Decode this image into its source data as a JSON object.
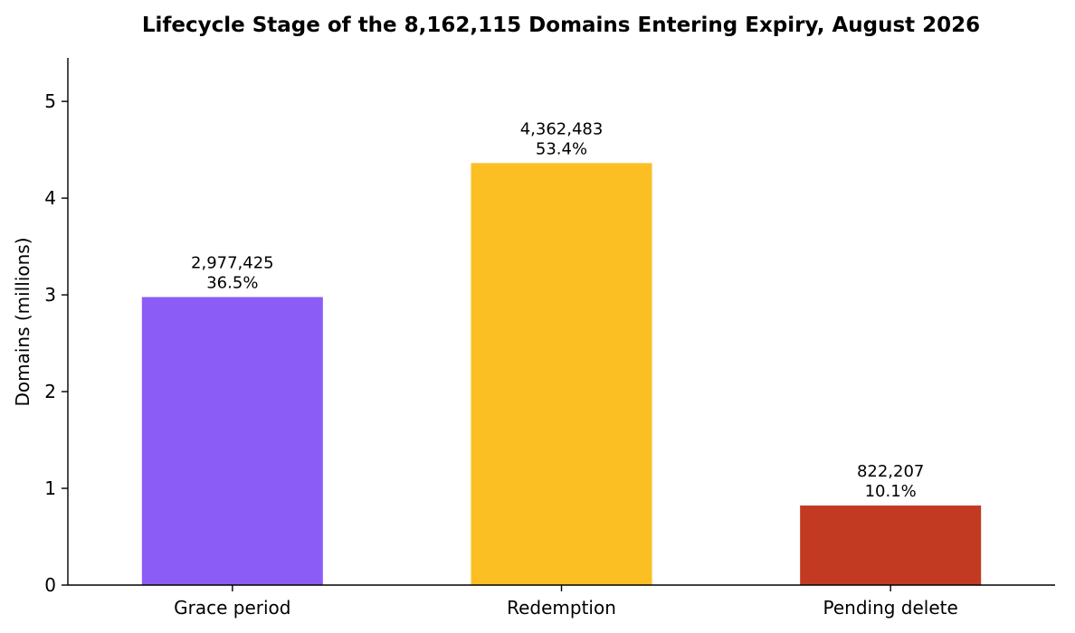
{
  "chart_data": {
    "type": "bar",
    "title": "Lifecycle Stage of the 8,162,115 Domains Entering Expiry, August 2026",
    "xlabel": "",
    "ylabel": "Domains (millions)",
    "ylim": [
      0,
      5.45
    ],
    "yticks": [
      0,
      1,
      2,
      3,
      4,
      5
    ],
    "grid": false,
    "legend": "none",
    "categories": [
      "Grace period",
      "Redemption",
      "Pending delete"
    ],
    "values": [
      2.977425,
      4.362483,
      0.822207
    ],
    "labels": [
      [
        "2,977,425",
        "36.5%"
      ],
      [
        "4,362,483",
        "53.4%"
      ],
      [
        "822,207",
        "10.1%"
      ]
    ],
    "colors": [
      "#8b5cf6",
      "#fbbf24",
      "#c23a22"
    ]
  }
}
